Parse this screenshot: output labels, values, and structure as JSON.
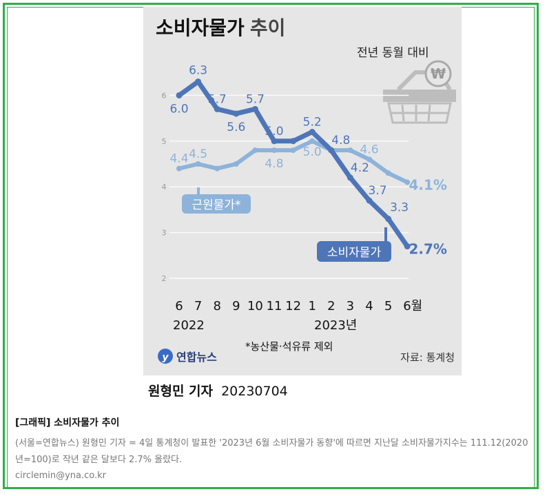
{
  "chart_data": {
    "type": "line",
    "title": "소비자물가",
    "title_suffix": "추이",
    "subtitle": "전년 동월 대비",
    "categories": [
      "6",
      "7",
      "8",
      "9",
      "10",
      "11",
      "12",
      "1",
      "2",
      "3",
      "4",
      "5",
      "6월"
    ],
    "year_labels": [
      "2022",
      "2023년"
    ],
    "y_ticks": [
      2,
      3,
      4,
      5,
      6
    ],
    "ylim": [
      2,
      6.5
    ],
    "series": [
      {
        "name": "근원물가*",
        "values": [
          4.4,
          4.5,
          4.4,
          4.5,
          4.8,
          4.8,
          4.8,
          5.0,
          4.8,
          4.8,
          4.6,
          4.3,
          4.1
        ],
        "point_labels": [
          "4.4",
          "4.5",
          "",
          "",
          "",
          "4.8",
          "",
          "5.0",
          "",
          "",
          "4.6",
          "",
          "4.1%"
        ],
        "color": "#8db3da"
      },
      {
        "name": "소비자물가",
        "values": [
          6.0,
          6.3,
          5.7,
          5.6,
          5.7,
          5.0,
          5.0,
          5.2,
          4.8,
          4.2,
          3.7,
          3.3,
          2.7
        ],
        "point_labels": [
          "6.0",
          "6.3",
          "5.7",
          "5.6",
          "5.7",
          "5.0",
          "",
          "5.2",
          "4.8",
          "4.2",
          "3.7",
          "3.3",
          "2.7%"
        ],
        "color": "#4e75b8"
      }
    ],
    "footnote": "*농산물·석유류 제외",
    "source": "자료: 통계청",
    "logo_text": "연합뉴스",
    "grid": true
  },
  "byline": {
    "reporter": "원형민 기자",
    "date": "20230704"
  },
  "caption": {
    "title": "[그래픽] 소비자물가 추이",
    "body": "(서울=연합뉴스) 원형민 기자 = 4일 통계청이 발표한 '2023년 6월 소비자물가 동향'에 따르면 지난달 소비자물가지수는 111.12(2020년=100)로 작년 같은 달보다 2.7% 올랐다.",
    "email": "circlemin@yna.co.kr"
  },
  "colors": {
    "frame": "#2fae4a",
    "background": "#e6e6e6",
    "core": "#8db3da",
    "cpi": "#4e75b8"
  }
}
